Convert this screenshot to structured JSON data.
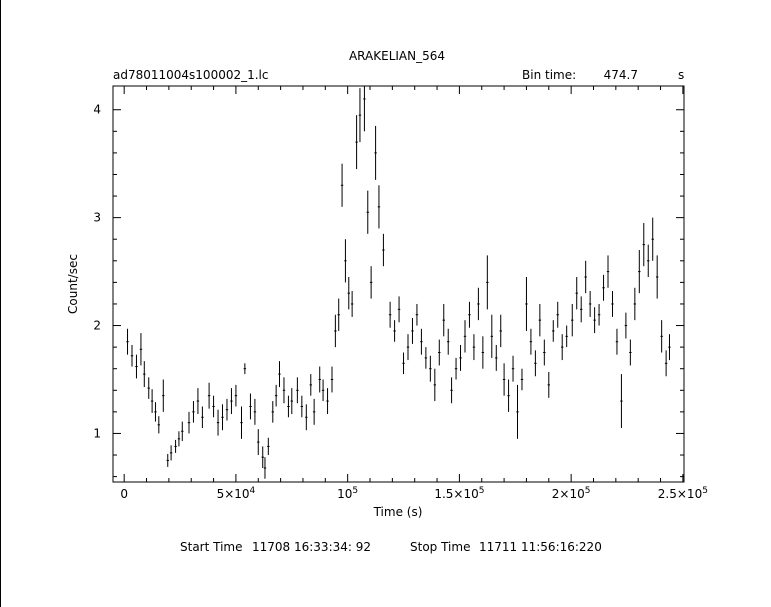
{
  "chart_data": {
    "type": "scatter",
    "title": "ARAKELIAN_564",
    "file_label": "ad78011004s100002_1.lc",
    "bin_time_label": "Bin time:",
    "bin_time_value": "474.7",
    "bin_time_unit": "s",
    "xlabel": "Time (s)",
    "ylabel": "Count/sec",
    "xlim": [
      -5000,
      250500
    ],
    "ylim": [
      0.55,
      4.22
    ],
    "x_ticks": [
      {
        "value": 0,
        "label": "0",
        "exp": ""
      },
      {
        "value": 50000,
        "label": "5×10",
        "exp": "4"
      },
      {
        "value": 100000,
        "label": "10",
        "exp": "5"
      },
      {
        "value": 150000,
        "label": "1.5×10",
        "exp": "5"
      },
      {
        "value": 200000,
        "label": "2×10",
        "exp": "5"
      },
      {
        "value": 250000,
        "label": "2.5×10",
        "exp": "5"
      }
    ],
    "y_ticks": [
      {
        "value": 1,
        "label": "1"
      },
      {
        "value": 2,
        "label": "2"
      },
      {
        "value": 3,
        "label": "3"
      },
      {
        "value": 4,
        "label": "4"
      }
    ],
    "series": [
      {
        "style": "error-bars",
        "points": [
          [
            1500,
            1.85,
            0.12
          ],
          [
            3500,
            1.72,
            0.1
          ],
          [
            5500,
            1.62,
            0.11
          ],
          [
            7500,
            1.78,
            0.15
          ],
          [
            9000,
            1.55,
            0.12
          ],
          [
            11000,
            1.42,
            0.1
          ],
          [
            12500,
            1.3,
            0.11
          ],
          [
            14000,
            1.2,
            0.09
          ],
          [
            15500,
            1.08,
            0.08
          ],
          [
            17500,
            1.35,
            0.15
          ],
          [
            19500,
            0.75,
            0.06
          ],
          [
            21000,
            0.82,
            0.07
          ],
          [
            23000,
            0.88,
            0.06
          ],
          [
            24500,
            0.95,
            0.07
          ],
          [
            26000,
            1.02,
            0.09
          ],
          [
            29000,
            1.1,
            0.1
          ],
          [
            31000,
            1.2,
            0.1
          ],
          [
            33000,
            1.3,
            0.12
          ],
          [
            35000,
            1.15,
            0.1
          ],
          [
            38000,
            1.35,
            0.12
          ],
          [
            40000,
            1.25,
            0.1
          ],
          [
            42000,
            1.1,
            0.12
          ],
          [
            44000,
            1.15,
            0.12
          ],
          [
            46000,
            1.22,
            0.1
          ],
          [
            48000,
            1.3,
            0.12
          ],
          [
            50000,
            1.35,
            0.1
          ],
          [
            52500,
            1.1,
            0.15
          ],
          [
            54000,
            1.6,
            0.05
          ],
          [
            56500,
            1.25,
            0.12
          ],
          [
            58500,
            1.2,
            0.12
          ],
          [
            60000,
            0.92,
            0.12
          ],
          [
            62000,
            0.78,
            0.1
          ],
          [
            63000,
            0.68,
            0.1
          ],
          [
            64500,
            0.88,
            0.08
          ],
          [
            66500,
            1.2,
            0.1
          ],
          [
            68000,
            1.35,
            0.1
          ],
          [
            69500,
            1.55,
            0.12
          ],
          [
            71500,
            1.4,
            0.12
          ],
          [
            73500,
            1.25,
            0.1
          ],
          [
            75000,
            1.3,
            0.12
          ],
          [
            77500,
            1.4,
            0.12
          ],
          [
            79500,
            1.25,
            0.1
          ],
          [
            81500,
            1.15,
            0.12
          ],
          [
            83500,
            1.45,
            0.1
          ],
          [
            85000,
            1.2,
            0.12
          ],
          [
            87500,
            1.5,
            0.12
          ],
          [
            89000,
            1.4,
            0.1
          ],
          [
            91000,
            1.3,
            0.12
          ],
          [
            93000,
            1.5,
            0.12
          ],
          [
            94500,
            1.95,
            0.15
          ],
          [
            96000,
            2.1,
            0.15
          ],
          [
            97500,
            3.3,
            0.2
          ],
          [
            99000,
            2.6,
            0.2
          ],
          [
            100500,
            2.3,
            0.15
          ],
          [
            102000,
            2.2,
            0.12
          ],
          [
            104000,
            3.7,
            0.25
          ],
          [
            105500,
            3.95,
            0.25
          ],
          [
            107500,
            4.1,
            0.3
          ],
          [
            109000,
            3.05,
            0.2
          ],
          [
            110500,
            2.4,
            0.15
          ],
          [
            112500,
            3.6,
            0.25
          ],
          [
            114000,
            3.1,
            0.2
          ],
          [
            116000,
            2.7,
            0.15
          ],
          [
            119000,
            2.1,
            0.12
          ],
          [
            121000,
            1.95,
            0.1
          ],
          [
            123000,
            2.15,
            0.12
          ],
          [
            125000,
            1.65,
            0.1
          ],
          [
            127000,
            1.8,
            0.12
          ],
          [
            129000,
            1.95,
            0.12
          ],
          [
            131000,
            2.1,
            0.1
          ],
          [
            133000,
            1.85,
            0.12
          ],
          [
            135000,
            1.7,
            0.1
          ],
          [
            137000,
            1.6,
            0.12
          ],
          [
            139000,
            1.45,
            0.15
          ],
          [
            141000,
            1.75,
            0.12
          ],
          [
            143000,
            2.05,
            0.15
          ],
          [
            145000,
            1.85,
            0.12
          ],
          [
            146500,
            1.4,
            0.12
          ],
          [
            148500,
            1.6,
            0.1
          ],
          [
            150500,
            1.7,
            0.12
          ],
          [
            152500,
            1.9,
            0.15
          ],
          [
            154500,
            2.1,
            0.12
          ],
          [
            156500,
            1.8,
            0.12
          ],
          [
            158500,
            2.2,
            0.15
          ],
          [
            160500,
            1.75,
            0.15
          ],
          [
            162500,
            2.4,
            0.25
          ],
          [
            164500,
            1.9,
            0.2
          ],
          [
            166500,
            1.7,
            0.12
          ],
          [
            168500,
            1.95,
            0.15
          ],
          [
            170000,
            1.5,
            0.15
          ],
          [
            172000,
            1.35,
            0.15
          ],
          [
            174000,
            1.6,
            0.12
          ],
          [
            176000,
            1.2,
            0.25
          ],
          [
            178000,
            1.5,
            0.1
          ],
          [
            180000,
            2.2,
            0.25
          ],
          [
            182000,
            1.85,
            0.12
          ],
          [
            184000,
            1.65,
            0.12
          ],
          [
            186000,
            2.05,
            0.15
          ],
          [
            188000,
            1.75,
            0.12
          ],
          [
            190000,
            1.45,
            0.12
          ],
          [
            192000,
            1.95,
            0.1
          ],
          [
            194000,
            2.1,
            0.12
          ],
          [
            196000,
            1.8,
            0.12
          ],
          [
            198000,
            1.9,
            0.1
          ],
          [
            200500,
            2.05,
            0.15
          ],
          [
            202500,
            2.3,
            0.15
          ],
          [
            204500,
            2.15,
            0.12
          ],
          [
            206500,
            2.45,
            0.15
          ],
          [
            208500,
            2.2,
            0.12
          ],
          [
            210500,
            2.05,
            0.12
          ],
          [
            212500,
            2.1,
            0.1
          ],
          [
            214500,
            2.35,
            0.12
          ],
          [
            216500,
            2.5,
            0.15
          ],
          [
            218500,
            2.2,
            0.12
          ],
          [
            220500,
            1.85,
            0.12
          ],
          [
            222500,
            1.3,
            0.25
          ],
          [
            224500,
            2.0,
            0.12
          ],
          [
            226500,
            1.75,
            0.12
          ],
          [
            228500,
            2.2,
            0.15
          ],
          [
            230500,
            2.5,
            0.2
          ],
          [
            232500,
            2.75,
            0.2
          ],
          [
            234500,
            2.6,
            0.15
          ],
          [
            236500,
            2.8,
            0.2
          ],
          [
            238500,
            2.45,
            0.2
          ],
          [
            240500,
            1.9,
            0.15
          ],
          [
            242500,
            1.65,
            0.12
          ],
          [
            244000,
            1.8,
            0.12
          ]
        ]
      }
    ]
  },
  "footer": {
    "start_label": "Start Time",
    "start_value": "11708 16:33:34: 92",
    "stop_label": "Stop Time",
    "stop_value": "11711 11:56:16:220"
  }
}
